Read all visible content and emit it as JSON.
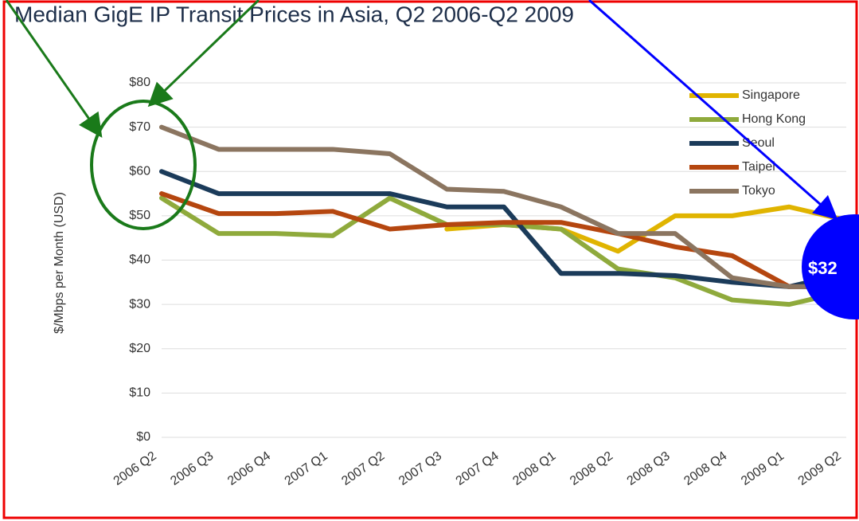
{
  "chart_data": {
    "type": "line",
    "title": "Median GigE IP Transit Prices in Asia, Q2 2006-Q2 2009",
    "y_label": "$/Mbps per Month (USD)",
    "categories": [
      "2006 Q2",
      "2006 Q3",
      "2006 Q4",
      "2007 Q1",
      "2007 Q2",
      "2007 Q3",
      "2007 Q4",
      "2008 Q1",
      "2008 Q2",
      "2008 Q3",
      "2008 Q4",
      "2009 Q1",
      "2009 Q2"
    ],
    "series": [
      {
        "name": "Singapore",
        "color": "#e0b400",
        "values": [
          null,
          null,
          null,
          null,
          null,
          47,
          48,
          47,
          42,
          50,
          50,
          52,
          49
        ]
      },
      {
        "name": "Hong Kong",
        "color": "#8faa3c",
        "values": [
          54,
          46,
          46,
          45.5,
          54,
          48,
          48,
          47,
          38,
          36,
          31,
          30,
          33
        ]
      },
      {
        "name": "Seoul",
        "color": "#1b3b5a",
        "values": [
          60,
          55,
          55,
          55,
          55,
          52,
          52,
          37,
          37,
          36.5,
          35,
          34,
          37
        ]
      },
      {
        "name": "Taipei",
        "color": "#b5460f",
        "values": [
          55,
          50.5,
          50.5,
          51,
          47,
          48,
          48.5,
          48.5,
          46,
          43,
          41,
          34,
          34
        ]
      },
      {
        "name": "Tokyo",
        "color": "#8b7560",
        "values": [
          70,
          65,
          65,
          65,
          64,
          56,
          55.5,
          52,
          46,
          46,
          36,
          34,
          34
        ]
      }
    ],
    "ylim": [
      0,
      80
    ],
    "yticks": [
      {
        "value": 0,
        "label": "$0"
      },
      {
        "value": 10,
        "label": "$10"
      },
      {
        "value": 20,
        "label": "$20"
      },
      {
        "value": 30,
        "label": "$30"
      },
      {
        "value": 40,
        "label": "$40"
      },
      {
        "value": 50,
        "label": "$50"
      },
      {
        "value": 60,
        "label": "$60"
      },
      {
        "value": 70,
        "label": "$70"
      },
      {
        "value": 80,
        "label": "$80"
      }
    ],
    "grid": true,
    "legend": "top-right",
    "annotation": "$32"
  }
}
